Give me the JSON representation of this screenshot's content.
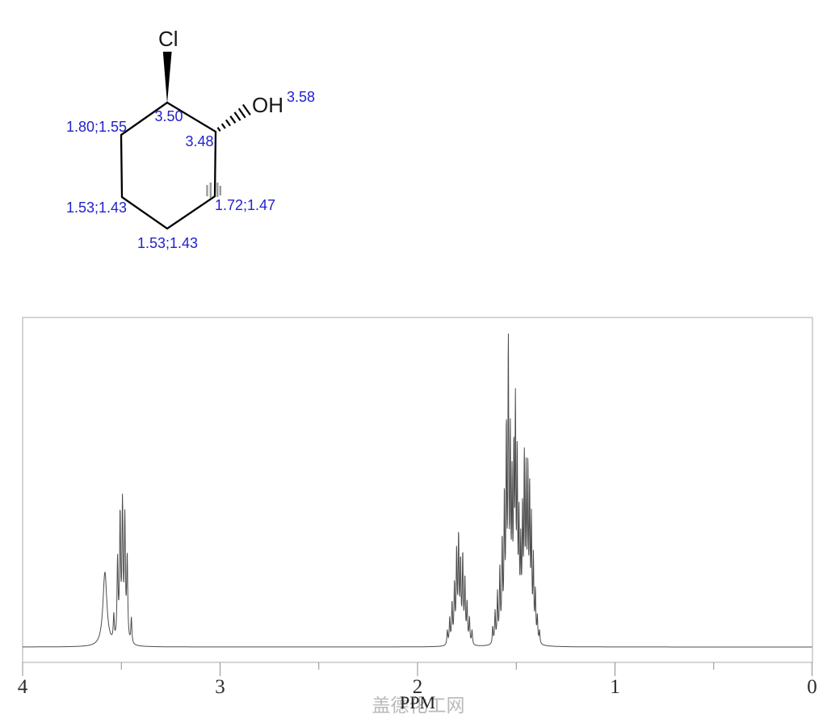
{
  "molecule": {
    "substituent_labels": {
      "chloro": "Cl",
      "hydroxyl": "OH"
    },
    "shift_label_color": "#2222cc",
    "shift_labels": {
      "oh": "3.58",
      "ch_cl": "3.50",
      "ch_oh": "3.48",
      "ch2_left_top": "1.80;1.55",
      "ch2_left_bottom": "1.53;1.43",
      "ch2_bottom": "1.53;1.43",
      "ch2_right": "1.72;1.47"
    }
  },
  "chart_data": {
    "type": "line",
    "kind": "1H NMR spectrum trace",
    "xlabel": "PPM",
    "x_axis": {
      "min": 0,
      "max": 4,
      "reversed": true,
      "tick_labels": [
        "4",
        "3",
        "2",
        "1",
        "0"
      ],
      "major_tick_values": [
        4,
        3,
        2,
        1,
        0
      ],
      "minor_tick_values": [
        3.5,
        2.5,
        1.5,
        0.5
      ]
    },
    "y_axis": {
      "shown": false
    },
    "frame_color": "#ababab",
    "trace_color": "#4d4d4d",
    "peaks": [
      {
        "ppm": 3.583,
        "h": 0.26,
        "w": 0.012
      },
      {
        "ppm": 3.538,
        "h": 0.09,
        "w": 0.003
      },
      {
        "ppm": 3.519,
        "h": 0.28,
        "w": 0.0032
      },
      {
        "ppm": 3.506,
        "h": 0.43,
        "w": 0.0032
      },
      {
        "ppm": 3.494,
        "h": 0.47,
        "w": 0.0032
      },
      {
        "ppm": 3.482,
        "h": 0.42,
        "w": 0.0032
      },
      {
        "ppm": 3.47,
        "h": 0.29,
        "w": 0.0032
      },
      {
        "ppm": 3.449,
        "h": 0.09,
        "w": 0.003
      },
      {
        "ppm": 1.848,
        "h": 0.05,
        "w": 0.0028
      },
      {
        "ppm": 1.836,
        "h": 0.09,
        "w": 0.0028
      },
      {
        "ppm": 1.824,
        "h": 0.14,
        "w": 0.0028
      },
      {
        "ppm": 1.812,
        "h": 0.2,
        "w": 0.0028
      },
      {
        "ppm": 1.801,
        "h": 0.31,
        "w": 0.0028
      },
      {
        "ppm": 1.791,
        "h": 0.36,
        "w": 0.0028
      },
      {
        "ppm": 1.781,
        "h": 0.27,
        "w": 0.0028
      },
      {
        "ppm": 1.77,
        "h": 0.3,
        "w": 0.0028
      },
      {
        "ppm": 1.759,
        "h": 0.22,
        "w": 0.0028
      },
      {
        "ppm": 1.748,
        "h": 0.14,
        "w": 0.0028
      },
      {
        "ppm": 1.736,
        "h": 0.09,
        "w": 0.0028
      },
      {
        "ppm": 1.723,
        "h": 0.05,
        "w": 0.0028
      },
      {
        "ppm": 1.618,
        "h": 0.06,
        "w": 0.0026
      },
      {
        "ppm": 1.606,
        "h": 0.11,
        "w": 0.0026
      },
      {
        "ppm": 1.594,
        "h": 0.17,
        "w": 0.0026
      },
      {
        "ppm": 1.582,
        "h": 0.25,
        "w": 0.0026
      },
      {
        "ppm": 1.57,
        "h": 0.34,
        "w": 0.0026
      },
      {
        "ppm": 1.559,
        "h": 0.48,
        "w": 0.0026
      },
      {
        "ppm": 1.549,
        "h": 0.7,
        "w": 0.0026
      },
      {
        "ppm": 1.539,
        "h": 1.0,
        "w": 0.0026
      },
      {
        "ppm": 1.529,
        "h": 0.66,
        "w": 0.0026
      },
      {
        "ppm": 1.52,
        "h": 0.5,
        "w": 0.0026
      },
      {
        "ppm": 1.511,
        "h": 0.6,
        "w": 0.0026
      },
      {
        "ppm": 1.503,
        "h": 0.76,
        "w": 0.0026
      },
      {
        "ppm": 1.494,
        "h": 0.6,
        "w": 0.0026
      },
      {
        "ppm": 1.485,
        "h": 0.4,
        "w": 0.0026
      },
      {
        "ppm": 1.476,
        "h": 0.3,
        "w": 0.0026
      },
      {
        "ppm": 1.467,
        "h": 0.42,
        "w": 0.0026
      },
      {
        "ppm": 1.458,
        "h": 0.6,
        "w": 0.0026
      },
      {
        "ppm": 1.449,
        "h": 0.54,
        "w": 0.0026
      },
      {
        "ppm": 1.44,
        "h": 0.56,
        "w": 0.0026
      },
      {
        "ppm": 1.431,
        "h": 0.5,
        "w": 0.0026
      },
      {
        "ppm": 1.422,
        "h": 0.4,
        "w": 0.0026
      },
      {
        "ppm": 1.412,
        "h": 0.28,
        "w": 0.0026
      },
      {
        "ppm": 1.402,
        "h": 0.17,
        "w": 0.0026
      },
      {
        "ppm": 1.392,
        "h": 0.09,
        "w": 0.0026
      },
      {
        "ppm": 1.381,
        "h": 0.045,
        "w": 0.0026
      }
    ]
  },
  "watermark": {
    "text": "盖德化工网",
    "color": "#b9b9b9"
  }
}
